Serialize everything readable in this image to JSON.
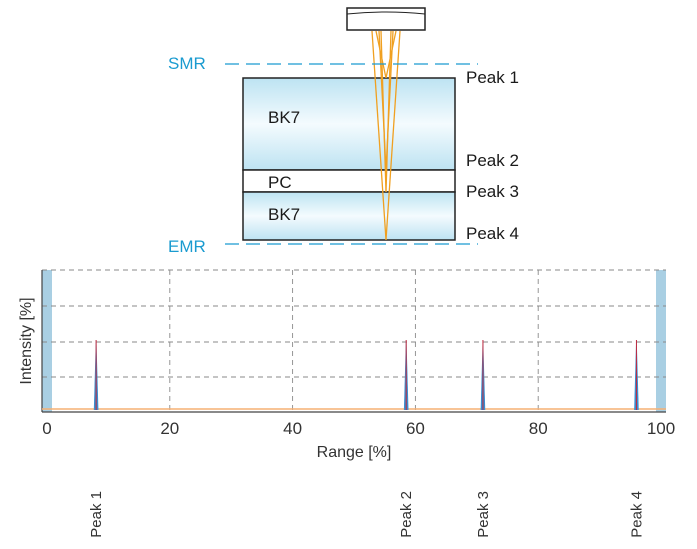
{
  "diagram": {
    "markers": {
      "smr": "SMR",
      "emr": "EMR"
    },
    "layers": [
      {
        "name": "BK7"
      },
      {
        "name": "PC"
      },
      {
        "name": "BK7"
      }
    ],
    "peak_labels": [
      "Peak 1",
      "Peak 2",
      "Peak 3",
      "Peak 4"
    ],
    "colors": {
      "marker": "#1a9bd0",
      "beam": "#f0a020",
      "glass": "#bde3f2",
      "peak_line_red": "#c0283c",
      "peak_line_blue": "#3a8fd0",
      "baseline": "#f6b074"
    }
  },
  "chart_data": {
    "type": "line",
    "xlabel": "Range [%]",
    "ylabel": "Intensity [%]",
    "xlim": [
      0,
      100
    ],
    "x_ticks": [
      "0",
      "20",
      "40",
      "60",
      "80",
      "100"
    ],
    "grid": true,
    "peaks": [
      {
        "name": "Peak 1",
        "x": 8
      },
      {
        "name": "Peak 2",
        "x": 58.5
      },
      {
        "name": "Peak 3",
        "x": 71
      },
      {
        "name": "Peak 4",
        "x": 96
      }
    ]
  }
}
